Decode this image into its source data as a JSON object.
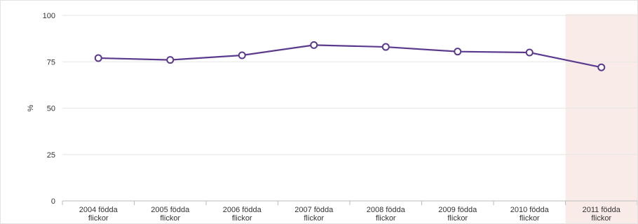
{
  "chart_data": {
    "type": "line",
    "categories": [
      [
        "2004 födda",
        "flickor"
      ],
      [
        "2005 födda",
        "flickor"
      ],
      [
        "2006 födda",
        "flickor"
      ],
      [
        "2007 födda",
        "flickor"
      ],
      [
        "2008 födda",
        "flickor"
      ],
      [
        "2009 födda",
        "flickor"
      ],
      [
        "2010 födda",
        "flickor"
      ],
      [
        "2011 födda",
        "flickor"
      ]
    ],
    "series": [
      {
        "values": [
          77,
          76,
          78.5,
          84,
          83,
          80.5,
          80,
          72
        ]
      }
    ],
    "ylabel": "%",
    "ylim": [
      0,
      100
    ],
    "yticks": [
      "0",
      "25",
      "50",
      "75",
      "100"
    ],
    "grid": true,
    "highlight_category_index": 7,
    "colors": {
      "line": "#5b3a8e",
      "marker_fill": "#ffffff",
      "grid": "#e6e6e6",
      "highlight_band": "#f9ece8",
      "axis": "#bbbbbb"
    }
  }
}
